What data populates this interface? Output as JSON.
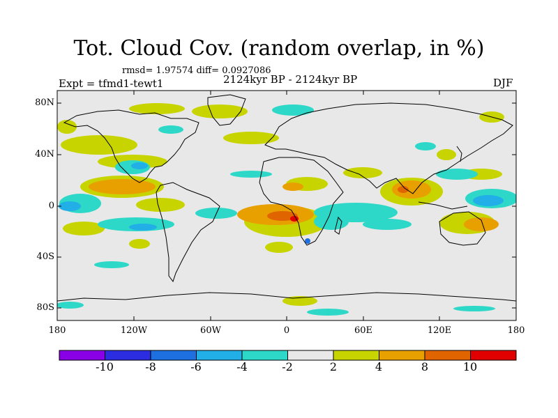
{
  "header": {
    "title": "Tot. Cloud Cov. (random overlap, in %)",
    "stats": "rmsd= 1.97574 diff= 0.0927086",
    "experiment": "Expt = tfmd1-tewt1",
    "period": "2124kyr BP - 2124kyr BP",
    "season": "DJF"
  },
  "map": {
    "lat_labels": [
      "80N",
      "40N",
      "0",
      "40S",
      "80S"
    ],
    "lon_labels": [
      "180",
      "120W",
      "60W",
      "0",
      "60E",
      "120E",
      "180"
    ],
    "colors": {
      "land_bg": "#e8e8e8",
      "frame": "#000000",
      "coast": "#000000"
    }
  },
  "colorbar": {
    "labels": [
      "-10",
      "-8",
      "-6",
      "-4",
      "-2",
      "2",
      "4",
      "8",
      "10"
    ],
    "colors": [
      "#8a00e6",
      "#2c2ce0",
      "#1e6fe0",
      "#22aee6",
      "#2ed8c8",
      "#e8e8e8",
      "#c8d400",
      "#e8a000",
      "#e06400",
      "#e00000"
    ]
  }
}
